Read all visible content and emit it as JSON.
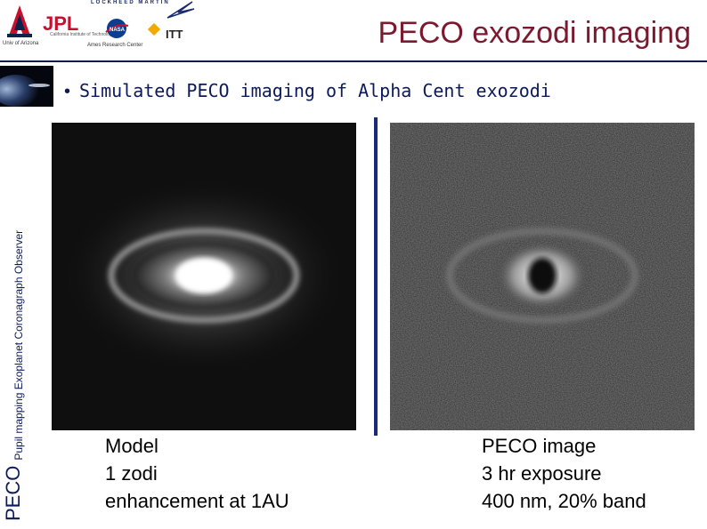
{
  "header": {
    "title": "PECO exozodi imaging",
    "logos": {
      "ua_caption": "Univ of Arizona",
      "jpl_caption": "California Institute of Technology",
      "lm_text": "LOCKHEED MARTIN",
      "ames_caption": "Ames Research Center",
      "itt_text": "ITT"
    }
  },
  "side": {
    "big_label": "PECO",
    "small_label": "Pupil mapping Exoplanet Coronagraph Observer"
  },
  "body": {
    "bullet": "Simulated PECO imaging of Alpha Cent exozodi",
    "left_caption": [
      "Model",
      "1 zodi",
      "enhancement at 1AU"
    ],
    "right_caption": [
      "PECO image",
      "3 hr exposure",
      "400 nm, 20% band"
    ]
  },
  "colors": {
    "title": "#7b1a2e",
    "text_navy": "#0b1a5a",
    "divider": "#1a2a7a"
  }
}
